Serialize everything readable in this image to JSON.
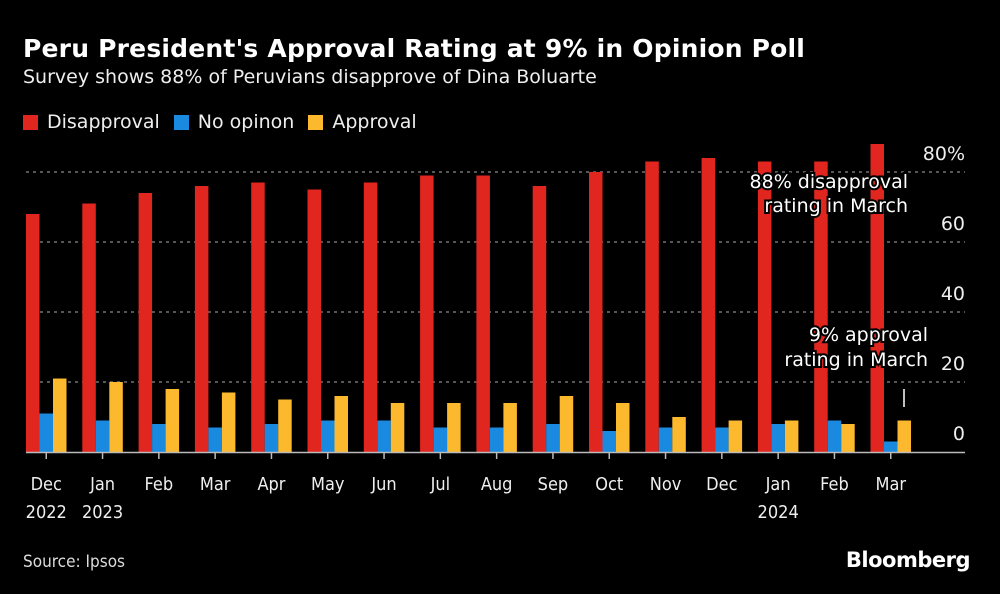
{
  "title": "Peru President's Approval Rating at 9% in Opinion Poll",
  "subtitle": "Survey shows 88% of Peruvians disapprove of Dina Boluarte",
  "source": "Source: Ipsos",
  "brand": "Bloomberg",
  "legend": [
    {
      "label": "Disapproval",
      "color": "#e0261f"
    },
    {
      "label": "No opinon",
      "color": "#1a8ae0"
    },
    {
      "label": "Approval",
      "color": "#fdb92e"
    }
  ],
  "chart_data": {
    "type": "bar",
    "title": "Peru President's Approval Rating at 9% in Opinion Poll",
    "subtitle": "Survey shows 88% of Peruvians disapprove of Dina Boluarte",
    "categories": [
      "Dec",
      "Jan",
      "Feb",
      "Mar",
      "Apr",
      "May",
      "Jun",
      "Jul",
      "Aug",
      "Sep",
      "Oct",
      "Nov",
      "Dec",
      "Jan",
      "Feb",
      "Mar"
    ],
    "year_labels": [
      "2022",
      "2023",
      "",
      "",
      "",
      "",
      "",
      "",
      "",
      "",
      "",
      "",
      "",
      "2024",
      "",
      ""
    ],
    "series": [
      {
        "name": "Disapproval",
        "color": "#e0261f",
        "values": [
          68,
          71,
          74,
          76,
          77,
          75,
          77,
          79,
          79,
          76,
          80,
          83,
          84,
          83,
          83,
          88
        ]
      },
      {
        "name": "No opinon",
        "color": "#1a8ae0",
        "values": [
          11,
          9,
          8,
          7,
          8,
          9,
          9,
          7,
          7,
          8,
          6,
          7,
          7,
          8,
          9,
          3
        ]
      },
      {
        "name": "Approval",
        "color": "#fdb92e",
        "values": [
          21,
          20,
          18,
          17,
          15,
          16,
          14,
          14,
          14,
          16,
          14,
          10,
          9,
          9,
          8,
          9
        ]
      }
    ],
    "yticks": [
      0,
      20,
      40,
      60,
      80
    ],
    "ytick_labels": [
      "0",
      "20",
      "40",
      "60",
      "80%"
    ],
    "ylim": [
      0,
      90
    ],
    "grid": true,
    "xlabel": "",
    "ylabel": "",
    "legend_position": "top-left",
    "annotations": [
      {
        "text": [
          "88% disapproval",
          "rating in March"
        ],
        "target": "Disapproval Mar 2024"
      },
      {
        "text": [
          "9% approval",
          "rating in March"
        ],
        "target": "Approval Mar 2024"
      }
    ]
  }
}
